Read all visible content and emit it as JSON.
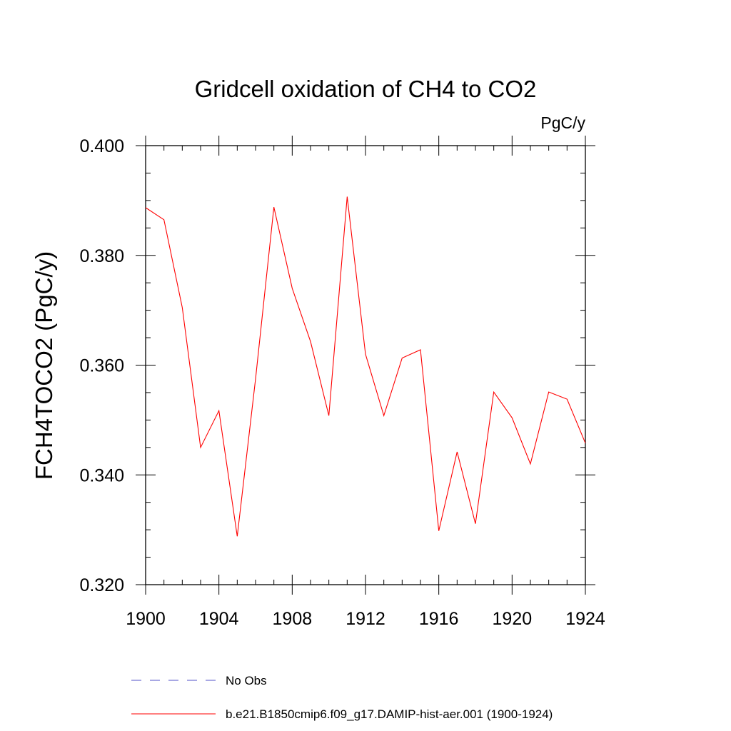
{
  "chart_data": {
    "type": "line",
    "title": "Gridcell oxidation of CH4 to CO2",
    "units": "PgC/y",
    "ylabel": "FCH4TOCO2  (PgC/y)",
    "xlabel": "",
    "xlim": [
      1900,
      1924
    ],
    "ylim": [
      0.32,
      0.4
    ],
    "xticks": [
      1900,
      1904,
      1908,
      1912,
      1916,
      1920,
      1924
    ],
    "xtick_labels": [
      "1900",
      "1904",
      "1908",
      "1912",
      "1916",
      "1920",
      "1924"
    ],
    "yticks": [
      0.32,
      0.34,
      0.36,
      0.38,
      0.4
    ],
    "ytick_labels": [
      "0.320",
      "0.340",
      "0.360",
      "0.380",
      "0.400"
    ],
    "grid": false,
    "legend_position": "bottom",
    "legend": [
      {
        "label": "No Obs",
        "color": "#5050c8",
        "style": "dashed"
      },
      {
        "label": "b.e21.B1850cmip6.f09_g17.DAMIP-hist-aer.001 (1900-1924)",
        "color": "#ff0000",
        "style": "solid"
      }
    ],
    "series": [
      {
        "name": "b.e21.B1850cmip6.f09_g17.DAMIP-hist-aer.001 (1900-1924)",
        "color": "#ff0000",
        "x": [
          1900,
          1901,
          1902,
          1903,
          1904,
          1905,
          1906,
          1907,
          1908,
          1909,
          1910,
          1911,
          1912,
          1913,
          1914,
          1915,
          1916,
          1917,
          1918,
          1919,
          1920,
          1921,
          1922,
          1923,
          1924
        ],
        "y": [
          0.3887,
          0.3865,
          0.3705,
          0.345,
          0.3517,
          0.3288,
          0.3575,
          0.3888,
          0.374,
          0.3643,
          0.3508,
          0.3907,
          0.362,
          0.3508,
          0.3613,
          0.3628,
          0.3298,
          0.3442,
          0.3311,
          0.3551,
          0.3504,
          0.342,
          0.3551,
          0.3538,
          0.3458
        ]
      }
    ]
  }
}
